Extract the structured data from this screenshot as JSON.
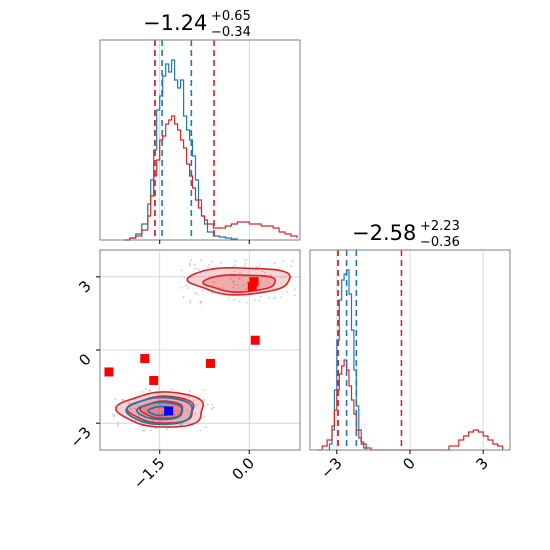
{
  "chart_data": {
    "type": "corner",
    "colors": {
      "blue": "#1f77b4",
      "red": "#d62728",
      "marker_red": "#ff0000",
      "marker_blue": "#0000ff",
      "grid": "#cfcfcf",
      "frame": "#7f7f7f"
    },
    "param1": {
      "title_main": "−1.24",
      "title_sup": "+0.65",
      "title_sub": "−0.34",
      "range": [
        -2.5,
        0.85
      ],
      "ticks": [
        -1.5,
        0.0
      ],
      "tick_labels": [
        "−1.5",
        "0.0"
      ],
      "blue_quantiles": [
        -1.58,
        -1.46,
        -0.97
      ],
      "red_quantiles": [
        -1.58,
        -0.59
      ]
    },
    "param2": {
      "title_main": "−2.58",
      "title_sup": "+2.23",
      "title_sub": "−0.36",
      "range": [
        -4.1,
        4.1
      ],
      "ticks": [
        -3,
        0,
        3
      ],
      "tick_labels": [
        "−3",
        "0",
        "3"
      ],
      "blue_quantiles": [
        -2.95,
        -2.6,
        -2.2
      ],
      "red_quantiles": [
        -2.95,
        -0.35
      ]
    },
    "hist1_blue": {
      "x": [
        -2.1,
        -2.0,
        -1.9,
        -1.8,
        -1.7,
        -1.65,
        -1.6,
        -1.55,
        -1.5,
        -1.45,
        -1.4,
        -1.35,
        -1.3,
        -1.25,
        -1.2,
        -1.15,
        -1.1,
        -1.05,
        -1.0,
        -0.95,
        -0.9,
        -0.85,
        -0.8,
        -0.75,
        -0.7,
        -0.6,
        -0.5,
        -0.4,
        -0.3,
        -0.2
      ],
      "y": [
        0,
        0.01,
        0.03,
        0.08,
        0.18,
        0.3,
        0.45,
        0.65,
        0.72,
        0.82,
        0.88,
        0.84,
        0.9,
        0.8,
        0.76,
        0.8,
        0.62,
        0.55,
        0.5,
        0.42,
        0.3,
        0.2,
        0.12,
        0.08,
        0.04,
        0.02,
        0.015,
        0.01,
        0.005,
        0
      ]
    },
    "hist1_red": {
      "x": [
        -2.1,
        -2.0,
        -1.9,
        -1.8,
        -1.7,
        -1.65,
        -1.6,
        -1.55,
        -1.5,
        -1.45,
        -1.4,
        -1.35,
        -1.3,
        -1.25,
        -1.2,
        -1.15,
        -1.1,
        -1.05,
        -1.0,
        -0.95,
        -0.9,
        -0.85,
        -0.8,
        -0.75,
        -0.7,
        -0.6,
        -0.5,
        -0.4,
        -0.3,
        -0.2,
        -0.1,
        0.0,
        0.1,
        0.2,
        0.3,
        0.4,
        0.5,
        0.6,
        0.7,
        0.8
      ],
      "y": [
        0,
        0.01,
        0.02,
        0.05,
        0.12,
        0.22,
        0.32,
        0.4,
        0.5,
        0.52,
        0.58,
        0.6,
        0.62,
        0.58,
        0.55,
        0.5,
        0.46,
        0.38,
        0.32,
        0.26,
        0.2,
        0.16,
        0.12,
        0.1,
        0.08,
        0.06,
        0.06,
        0.07,
        0.08,
        0.09,
        0.09,
        0.08,
        0.08,
        0.07,
        0.07,
        0.06,
        0.04,
        0.03,
        0.02,
        0.01
      ]
    },
    "hist2_blue": {
      "x": [
        -3.4,
        -3.3,
        -3.2,
        -3.1,
        -3.0,
        -2.9,
        -2.8,
        -2.7,
        -2.6,
        -2.5,
        -2.4,
        -2.3,
        -2.2,
        -2.1,
        -2.0,
        -1.9,
        -1.8
      ],
      "y": [
        0,
        0.03,
        0.1,
        0.3,
        0.55,
        0.75,
        0.85,
        0.88,
        0.9,
        0.78,
        0.6,
        0.4,
        0.22,
        0.1,
        0.04,
        0.01,
        0
      ]
    },
    "hist2_red": {
      "x": [
        -3.8,
        -3.6,
        -3.4,
        -3.2,
        -3.1,
        -3.0,
        -2.9,
        -2.8,
        -2.7,
        -2.6,
        -2.5,
        -2.4,
        -2.3,
        -2.2,
        -2.1,
        -2.0,
        -1.8,
        -1.6,
        1.2,
        1.6,
        2.0,
        2.2,
        2.4,
        2.6,
        2.8,
        3.0,
        3.2,
        3.4,
        3.6,
        3.8
      ],
      "y": [
        0,
        0.02,
        0.05,
        0.12,
        0.2,
        0.3,
        0.38,
        0.42,
        0.45,
        0.4,
        0.32,
        0.25,
        0.18,
        0.1,
        0.06,
        0.03,
        0.01,
        0,
        0,
        0.02,
        0.05,
        0.07,
        0.09,
        0.1,
        0.09,
        0.07,
        0.05,
        0.03,
        0.02,
        0
      ]
    },
    "markers_red": [
      {
        "x": -2.35,
        "y": -0.9
      },
      {
        "x": -1.75,
        "y": -0.35
      },
      {
        "x": -1.6,
        "y": -1.25
      },
      {
        "x": -0.65,
        "y": -0.55
      },
      {
        "x": 0.05,
        "y": 2.6
      },
      {
        "x": 0.08,
        "y": 2.8
      },
      {
        "x": 0.1,
        "y": 0.4
      }
    ],
    "marker_blue": {
      "x": -1.35,
      "y": -2.5
    },
    "red_contours": [
      {
        "cx": -1.45,
        "cy": -2.45,
        "rx": 0.72,
        "ry": 0.72,
        "fill_opacity": 0.35
      },
      {
        "cx": -1.45,
        "cy": -2.45,
        "rx": 0.55,
        "ry": 0.55,
        "fill_opacity": 0.45
      },
      {
        "cx": -1.45,
        "cy": -2.45,
        "rx": 0.35,
        "ry": 0.35,
        "fill_opacity": 0.55
      },
      {
        "cx": -0.15,
        "cy": 2.85,
        "rx": 0.85,
        "ry": 0.55,
        "fill_opacity": 0.35
      },
      {
        "cx": -0.15,
        "cy": 2.75,
        "rx": 0.6,
        "ry": 0.35,
        "fill_opacity": 0.45
      }
    ],
    "blue_contours": [
      {
        "cx": -1.48,
        "cy": -2.5,
        "rx": 0.55,
        "ry": 0.55
      },
      {
        "cx": -1.48,
        "cy": -2.5,
        "rx": 0.38,
        "ry": 0.35
      },
      {
        "cx": -1.48,
        "cy": -2.5,
        "rx": 0.2,
        "ry": 0.18
      }
    ]
  }
}
